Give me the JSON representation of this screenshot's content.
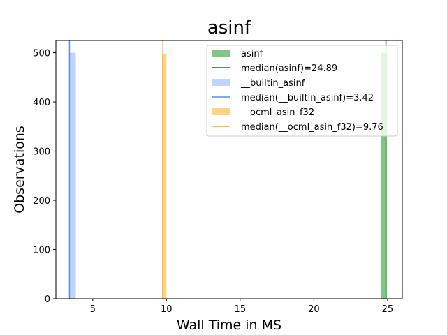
{
  "chart_data": {
    "type": "bar",
    "title": "asinf",
    "xlabel": "Wall Time in MS",
    "ylabel": "Observations",
    "xlim": [
      2.5,
      26.0
    ],
    "ylim": [
      0,
      525
    ],
    "xticks": [
      "5",
      "10",
      "15",
      "20",
      "25"
    ],
    "yticks": [
      "0",
      "100",
      "200",
      "300",
      "400",
      "500"
    ],
    "grid": false,
    "legend_position": "top-right",
    "series": [
      {
        "name": "asinf",
        "kind": "histogram",
        "color": "#4caf50",
        "bins": [
          [
            24.55,
            24.95,
            500
          ]
        ],
        "median": 24.89,
        "median_label": "median(asinf)=24.89",
        "median_color": "#008000"
      },
      {
        "name": "__builtin_asinf",
        "kind": "histogram",
        "color": "#a4c2f4",
        "bins": [
          [
            3.42,
            3.85,
            500
          ]
        ],
        "median": 3.42,
        "median_label": "median(__builtin_asinf)=3.42",
        "median_color": "#5b8ee6"
      },
      {
        "name": "__ocml_asin_f32",
        "kind": "histogram",
        "color": "#ffc04d",
        "bins": [
          [
            9.7,
            10.0,
            498
          ]
        ],
        "median": 9.76,
        "median_label": "median(__ocml_asin_f32)=9.76",
        "median_color": "#ffa500"
      }
    ]
  }
}
